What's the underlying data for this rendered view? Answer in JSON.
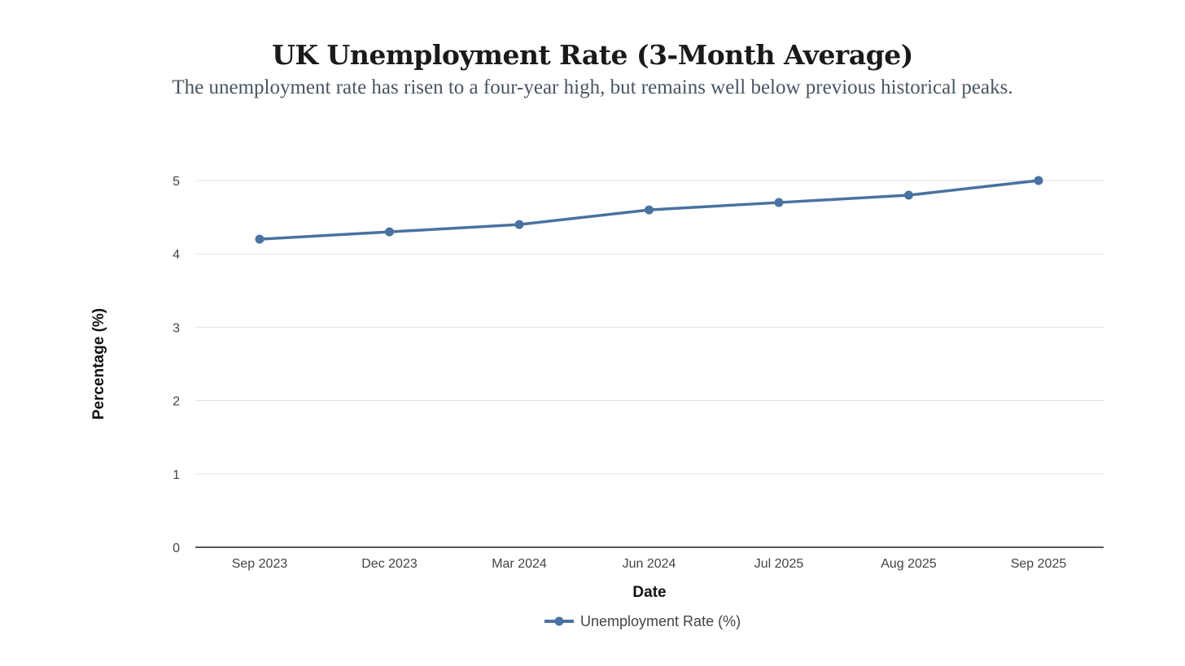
{
  "title": "UK Unemployment Rate (3-Month Average)",
  "subtitle": "The unemployment rate has risen to a four-year high, but remains well below previous historical peaks.",
  "chart_data": {
    "type": "line",
    "title": "UK Unemployment Rate (3-Month Average)",
    "subtitle": "The unemployment rate has risen to a four-year high, but remains well below previous historical peaks.",
    "xlabel": "Date",
    "ylabel": "Percentage (%)",
    "categories": [
      "Sep 2023",
      "Dec 2023",
      "Mar 2024",
      "Jun 2024",
      "Jul 2025",
      "Aug 2025",
      "Sep 2025"
    ],
    "series": [
      {
        "name": "Unemployment Rate (%)",
        "values": [
          4.2,
          4.3,
          4.4,
          4.6,
          4.7,
          4.8,
          5.0
        ],
        "color": "#4a72a0"
      }
    ],
    "ylim": [
      0,
      5
    ],
    "yticks": [
      0,
      1,
      2,
      3,
      4,
      5
    ],
    "grid": true,
    "legend": "bottom-center"
  }
}
